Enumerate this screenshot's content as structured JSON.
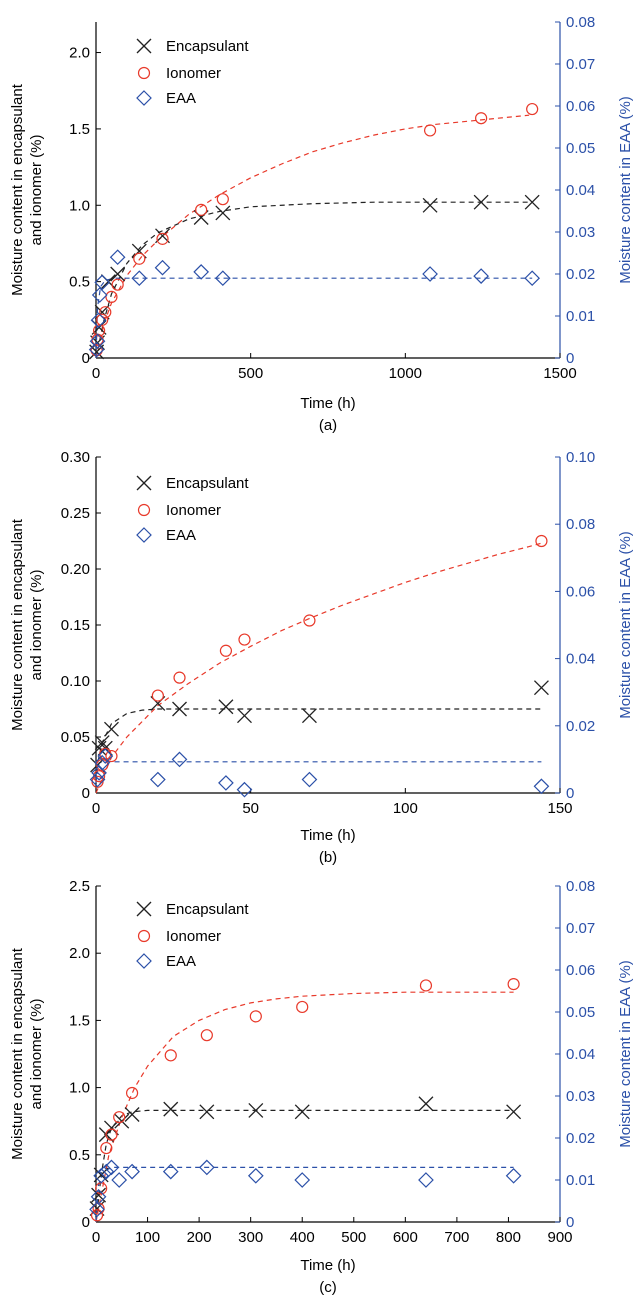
{
  "colors": {
    "encapsulant": "#222222",
    "ionomer": "#e8392a",
    "eaa": "#2b50a8"
  },
  "legend_labels": [
    "Encapsulant",
    "Ionomer",
    "EAA"
  ],
  "chart_data": [
    {
      "type": "scatter",
      "caption": "(a)",
      "xlabel": "Time (h)",
      "ylabel_lines": [
        "Moisture content in encapsulant",
        "and ionomer (%)"
      ],
      "y2label": "Moisture content in EAA (%)",
      "xlim": [
        0,
        1500
      ],
      "ylim": [
        0,
        2.2
      ],
      "y2lim": [
        0,
        0.08
      ],
      "x_ticks": [
        0,
        500,
        1000,
        1500
      ],
      "y_ticks": [
        0,
        0.5,
        1.0,
        1.5,
        2.0
      ],
      "y_tick_labels": [
        "0",
        "0.5",
        "1.0",
        "1.5",
        "2.0"
      ],
      "y2_ticks": [
        0,
        0.01,
        0.02,
        0.03,
        0.04,
        0.05,
        0.06,
        0.07,
        0.08
      ],
      "y2_tick_labels": [
        "0",
        "0.01",
        "0.02",
        "0.03",
        "0.04",
        "0.05",
        "0.06",
        "0.07",
        "0.08"
      ],
      "series": [
        {
          "name": "Encapsulant",
          "marker": "x",
          "axis": "left",
          "x": [
            2,
            5,
            10,
            20,
            40,
            70,
            140,
            215,
            340,
            410,
            1080,
            1245,
            1410
          ],
          "y": [
            0.04,
            0.1,
            0.2,
            0.3,
            0.5,
            0.55,
            0.7,
            0.8,
            0.92,
            0.95,
            1.0,
            1.02,
            1.02
          ]
        },
        {
          "name": "Ionomer",
          "marker": "circle",
          "axis": "left",
          "x": [
            2,
            5,
            10,
            20,
            30,
            50,
            70,
            140,
            215,
            340,
            410,
            1080,
            1245,
            1410
          ],
          "y": [
            0.05,
            0.12,
            0.18,
            0.25,
            0.3,
            0.4,
            0.48,
            0.65,
            0.78,
            0.97,
            1.04,
            1.49,
            1.57,
            1.63
          ],
          "fit": {
            "x": [
              0,
              25,
              50,
              100,
              150,
              200,
              300,
              400,
              500,
              600,
              700,
              800,
              900,
              1000,
              1100,
              1200,
              1300,
              1400
            ],
            "y": [
              0,
              0.22,
              0.36,
              0.54,
              0.67,
              0.77,
              0.94,
              1.07,
              1.18,
              1.27,
              1.35,
              1.41,
              1.46,
              1.5,
              1.53,
              1.55,
              1.57,
              1.59
            ]
          }
        },
        {
          "name": "EAA",
          "marker": "diamond",
          "axis": "right",
          "x": [
            2,
            5,
            8,
            12,
            20,
            70,
            140,
            215,
            340,
            410,
            1080,
            1245,
            1410
          ],
          "y": [
            0.002,
            0.004,
            0.009,
            0.015,
            0.018,
            0.024,
            0.019,
            0.0215,
            0.0205,
            0.019,
            0.02,
            0.0195,
            0.019
          ],
          "fit": {
            "x": [
              0,
              5,
              15,
              30,
              60,
              100,
              1410
            ],
            "y": [
              0,
              0.012,
              0.017,
              0.0185,
              0.019,
              0.019,
              0.019
            ]
          }
        }
      ],
      "encapsulant_fit": {
        "x": [
          0,
          25,
          50,
          100,
          150,
          200,
          300,
          400,
          500,
          700,
          900,
          1100,
          1410
        ],
        "y": [
          0,
          0.24,
          0.42,
          0.62,
          0.74,
          0.82,
          0.91,
          0.96,
          0.99,
          1.01,
          1.02,
          1.02,
          1.02
        ]
      }
    },
    {
      "type": "scatter",
      "caption": "(b)",
      "xlabel": "Time (h)",
      "ylabel_lines": [
        "Moisture content in encapsulant",
        "and ionomer (%)"
      ],
      "y2label": "Moisture content in EAA (%)",
      "xlim": [
        0,
        150
      ],
      "ylim": [
        0,
        0.3
      ],
      "y2lim": [
        0,
        0.1
      ],
      "x_ticks": [
        0,
        50,
        100,
        150
      ],
      "y_ticks": [
        0,
        0.05,
        0.1,
        0.15,
        0.2,
        0.25,
        0.3
      ],
      "y_tick_labels": [
        "0",
        "0.05",
        "0.10",
        "0.15",
        "0.20",
        "0.25",
        "0.30"
      ],
      "y2_ticks": [
        0,
        0.02,
        0.04,
        0.06,
        0.08,
        0.1
      ],
      "y2_tick_labels": [
        "0",
        "0.02",
        "0.04",
        "0.06",
        "0.08",
        "0.10"
      ],
      "series": [
        {
          "name": "Encapsulant",
          "marker": "x",
          "axis": "left",
          "x": [
            0.5,
            1,
            2,
            3,
            5,
            20,
            27,
            42,
            48,
            69,
            144
          ],
          "y": [
            0.025,
            0.04,
            0.045,
            0.04,
            0.057,
            0.08,
            0.075,
            0.077,
            0.069,
            0.069,
            0.094
          ]
        },
        {
          "name": "Ionomer",
          "marker": "circle",
          "axis": "left",
          "x": [
            0.5,
            1,
            2,
            3,
            5,
            20,
            27,
            42,
            48,
            69,
            144
          ],
          "y": [
            0.01,
            0.015,
            0.025,
            0.035,
            0.033,
            0.087,
            0.103,
            0.127,
            0.137,
            0.154,
            0.225
          ],
          "fit": {
            "x": [
              0,
              5,
              10,
              20,
              30,
              40,
              50,
              60,
              70,
              80,
              90,
              100,
              110,
              120,
              130,
              140,
              144
            ],
            "y": [
              0,
              0.032,
              0.05,
              0.078,
              0.098,
              0.116,
              0.131,
              0.145,
              0.157,
              0.168,
              0.178,
              0.188,
              0.197,
              0.205,
              0.213,
              0.22,
              0.223
            ]
          }
        },
        {
          "name": "EAA",
          "marker": "diamond",
          "axis": "right",
          "x": [
            0.5,
            1,
            2,
            3,
            20,
            27,
            42,
            48,
            69,
            144
          ],
          "y": [
            0.004,
            0.006,
            0.009,
            0.011,
            0.004,
            0.01,
            0.003,
            0.001,
            0.004,
            0.002
          ],
          "fit": {
            "x": [
              0,
              0.5,
              1,
              2,
              3,
              144
            ],
            "y": [
              0.003,
              0.007,
              0.009,
              0.0093,
              0.0093,
              0.0093
            ]
          }
        }
      ],
      "encapsulant_fit": {
        "x": [
          0,
          2,
          5,
          10,
          15,
          20,
          30,
          40,
          60,
          144
        ],
        "y": [
          0.02,
          0.045,
          0.062,
          0.071,
          0.074,
          0.075,
          0.075,
          0.075,
          0.075,
          0.075
        ]
      }
    },
    {
      "type": "scatter",
      "caption": "(c)",
      "xlabel": "Time (h)",
      "ylabel_lines": [
        "Moisture content in encapsulant",
        "and ionomer (%)"
      ],
      "y2label": "Moisture content in EAA (%)",
      "xlim": [
        0,
        900
      ],
      "ylim": [
        0,
        2.5
      ],
      "y2lim": [
        0,
        0.08
      ],
      "x_ticks": [
        0,
        100,
        200,
        300,
        400,
        500,
        600,
        700,
        800,
        900
      ],
      "y_ticks": [
        0,
        0.5,
        1.0,
        1.5,
        2.0,
        2.5
      ],
      "y_tick_labels": [
        "0",
        "0.5",
        "1.0",
        "1.5",
        "2.0",
        "2.5"
      ],
      "y2_ticks": [
        0,
        0.01,
        0.02,
        0.03,
        0.04,
        0.05,
        0.06,
        0.07,
        0.08
      ],
      "y2_tick_labels": [
        "0",
        "0.01",
        "0.02",
        "0.03",
        "0.04",
        "0.05",
        "0.06",
        "0.07",
        "0.08"
      ],
      "series": [
        {
          "name": "Encapsulant",
          "marker": "x",
          "axis": "left",
          "x": [
            2,
            5,
            10,
            20,
            30,
            50,
            70,
            145,
            215,
            310,
            400,
            640,
            810
          ],
          "y": [
            0.1,
            0.2,
            0.35,
            0.65,
            0.7,
            0.75,
            0.8,
            0.84,
            0.82,
            0.83,
            0.82,
            0.88,
            0.82
          ]
        },
        {
          "name": "Ionomer",
          "marker": "circle",
          "axis": "left",
          "x": [
            2,
            5,
            10,
            20,
            30,
            45,
            70,
            145,
            215,
            310,
            400,
            640,
            810
          ],
          "y": [
            0.05,
            0.1,
            0.25,
            0.55,
            0.65,
            0.78,
            0.96,
            1.24,
            1.39,
            1.53,
            1.6,
            1.76,
            1.77
          ],
          "fit": {
            "x": [
              0,
              25,
              50,
              75,
              100,
              150,
              200,
              250,
              300,
              350,
              400,
              500,
              600,
              700,
              810
            ],
            "y": [
              0,
              0.5,
              0.78,
              1.0,
              1.16,
              1.38,
              1.5,
              1.58,
              1.63,
              1.66,
              1.68,
              1.7,
              1.71,
              1.71,
              1.71
            ]
          }
        },
        {
          "name": "EAA",
          "marker": "diamond",
          "axis": "right",
          "x": [
            2,
            5,
            10,
            20,
            30,
            45,
            70,
            145,
            215,
            310,
            400,
            640,
            810
          ],
          "y": [
            0.003,
            0.006,
            0.011,
            0.012,
            0.013,
            0.01,
            0.012,
            0.012,
            0.013,
            0.011,
            0.01,
            0.01,
            0.011
          ],
          "fit": {
            "x": [
              0,
              5,
              15,
              30,
              60,
              810
            ],
            "y": [
              0,
              0.009,
              0.012,
              0.013,
              0.013,
              0.013
            ]
          }
        }
      ],
      "encapsulant_fit": {
        "x": [
          0,
          10,
          20,
          30,
          50,
          70,
          100,
          150,
          200,
          810
        ],
        "y": [
          0,
          0.35,
          0.58,
          0.7,
          0.79,
          0.82,
          0.83,
          0.83,
          0.83,
          0.83
        ]
      }
    }
  ]
}
